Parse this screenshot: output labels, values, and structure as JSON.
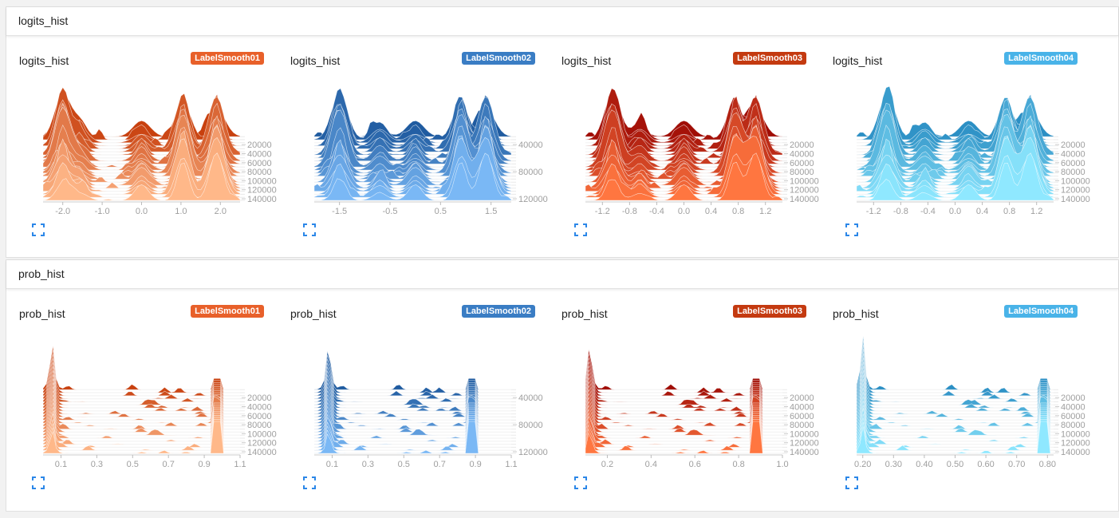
{
  "sections": [
    {
      "title": "logits_hist",
      "cards": [
        {
          "title": "logits_hist",
          "run": {
            "label": "LabelSmooth01",
            "color": "#e8602a"
          },
          "chart_data": {
            "type": "histogram-offset",
            "x_ticks": [
              "-2.0",
              "-1.0",
              "0.0",
              "1.0",
              "2.0"
            ],
            "x_tick_values": [
              -2.0,
              -1.0,
              0.0,
              1.0,
              2.0
            ],
            "xlim": [
              -2.5,
              2.5
            ],
            "y_ticks": [
              "20000",
              "40000",
              "60000",
              "80000",
              "100000",
              "120000",
              "140000"
            ],
            "peaks": [
              -2.0,
              -1.55,
              0.0,
              1.05,
              1.9
            ],
            "color_back": "#c8400e",
            "color_front": "#ffb889"
          }
        },
        {
          "title": "logits_hist",
          "run": {
            "label": "LabelSmooth02",
            "color": "#3a7dc4"
          },
          "chart_data": {
            "type": "histogram-offset",
            "x_ticks": [
              "-1.5",
              "-0.5",
              "0.5",
              "1.5"
            ],
            "x_tick_values": [
              -1.5,
              -0.5,
              0.5,
              1.5
            ],
            "xlim": [
              -2.0,
              1.9
            ],
            "y_ticks": [
              "40000",
              "80000",
              "120000"
            ],
            "peaks": [
              -1.5,
              -0.7,
              0.0,
              0.9,
              1.4
            ],
            "color_back": "#1f5ba0",
            "color_front": "#7ab8f5"
          }
        },
        {
          "title": "logits_hist",
          "run": {
            "label": "LabelSmooth03",
            "color": "#c43a10"
          },
          "chart_data": {
            "type": "histogram-offset",
            "x_ticks": [
              "-1.2",
              "-0.8",
              "-0.4",
              "0.0",
              "0.4",
              "0.8",
              "1.2"
            ],
            "x_tick_values": [
              -1.2,
              -0.8,
              -0.4,
              0.0,
              0.4,
              0.8,
              1.2
            ],
            "xlim": [
              -1.45,
              1.45
            ],
            "y_ticks": [
              "20000",
              "40000",
              "60000",
              "80000",
              "100000",
              "120000",
              "140000"
            ],
            "peaks": [
              -1.05,
              -0.65,
              0.0,
              0.75,
              1.05
            ],
            "color_back": "#a00d06",
            "color_front": "#ff7640"
          }
        },
        {
          "title": "logits_hist",
          "run": {
            "label": "LabelSmooth04",
            "color": "#49b3e8"
          },
          "chart_data": {
            "type": "histogram-offset",
            "x_ticks": [
              "-1.2",
              "-0.8",
              "-0.4",
              "0.0",
              "0.4",
              "0.8",
              "1.2"
            ],
            "x_tick_values": [
              -1.2,
              -0.8,
              -0.4,
              0.0,
              0.4,
              0.8,
              1.2
            ],
            "xlim": [
              -1.45,
              1.45
            ],
            "y_ticks": [
              "20000",
              "40000",
              "60000",
              "80000",
              "100000",
              "120000",
              "140000"
            ],
            "peaks": [
              -1.0,
              -0.45,
              0.2,
              0.75,
              1.1
            ],
            "color_back": "#2b8fc4",
            "color_front": "#8fe8ff"
          }
        }
      ]
    },
    {
      "title": "prob_hist",
      "cards": [
        {
          "title": "prob_hist",
          "run": {
            "label": "LabelSmooth01",
            "color": "#e8602a"
          },
          "chart_data": {
            "type": "histogram-offset",
            "x_ticks": [
              "0.1",
              "0.3",
              "0.5",
              "0.7",
              "0.9",
              "1.1"
            ],
            "x_tick_values": [
              0.1,
              0.3,
              0.5,
              0.7,
              0.9,
              1.1
            ],
            "xlim": [
              0.0,
              1.1
            ],
            "y_ticks": [
              "20000",
              "40000",
              "60000",
              "80000",
              "100000",
              "120000",
              "140000"
            ],
            "edges": [
              0.05,
              0.97
            ],
            "color_back": "#c8400e",
            "color_front": "#ffb889"
          }
        },
        {
          "title": "prob_hist",
          "run": {
            "label": "LabelSmooth02",
            "color": "#3a7dc4"
          },
          "chart_data": {
            "type": "histogram-offset",
            "x_ticks": [
              "0.1",
              "0.3",
              "0.5",
              "0.7",
              "0.9",
              "1.1"
            ],
            "x_tick_values": [
              0.1,
              0.3,
              0.5,
              0.7,
              0.9,
              1.1
            ],
            "xlim": [
              0.0,
              1.1
            ],
            "y_ticks": [
              "40000",
              "80000",
              "120000"
            ],
            "edges": [
              0.08,
              0.88
            ],
            "color_back": "#1f5ba0",
            "color_front": "#7ab8f5"
          }
        },
        {
          "title": "prob_hist",
          "run": {
            "label": "LabelSmooth03",
            "color": "#c43a10"
          },
          "chart_data": {
            "type": "histogram-offset",
            "x_ticks": [
              "0.2",
              "0.4",
              "0.6",
              "0.8",
              "1.0"
            ],
            "x_tick_values": [
              0.2,
              0.4,
              0.6,
              0.8,
              1.0
            ],
            "xlim": [
              0.1,
              1.0
            ],
            "y_ticks": [
              "20000",
              "40000",
              "60000",
              "80000",
              "100000",
              "120000",
              "140000"
            ],
            "edges": [
              0.12,
              0.88
            ],
            "color_back": "#a00d06",
            "color_front": "#ff7640"
          }
        },
        {
          "title": "prob_hist",
          "run": {
            "label": "LabelSmooth04",
            "color": "#49b3e8"
          },
          "chart_data": {
            "type": "histogram-offset",
            "x_ticks": [
              "0.20",
              "0.30",
              "0.40",
              "0.50",
              "0.60",
              "0.70",
              "0.80"
            ],
            "x_tick_values": [
              0.2,
              0.3,
              0.4,
              0.5,
              0.6,
              0.7,
              0.8
            ],
            "xlim": [
              0.18,
              0.82
            ],
            "y_ticks": [
              "20000",
              "40000",
              "60000",
              "80000",
              "100000",
              "120000",
              "140000"
            ],
            "edges": [
              0.2,
              0.79
            ],
            "color_back": "#2b8fc4",
            "color_front": "#8fe8ff"
          }
        }
      ]
    }
  ]
}
